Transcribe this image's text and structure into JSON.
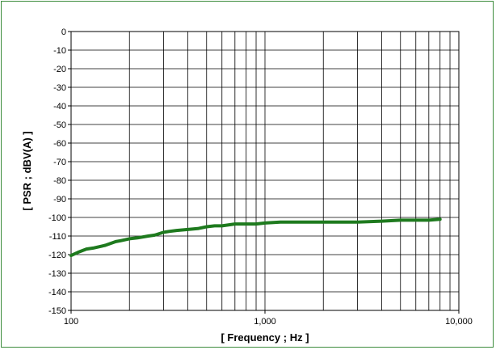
{
  "chart_data": {
    "type": "line",
    "title": "",
    "xlabel": "[ Frequency ; Hz ]",
    "ylabel": "[ PSR ; dBV(A) ]",
    "x_scale": "log",
    "xlim": [
      100,
      10000
    ],
    "ylim": [
      -150,
      0
    ],
    "x_ticks": [
      100,
      1000,
      10000
    ],
    "x_tick_labels": [
      "100",
      "1,000",
      "10,000"
    ],
    "y_ticks": [
      0,
      -10,
      -20,
      -30,
      -40,
      -50,
      -60,
      -70,
      -80,
      -90,
      -100,
      -110,
      -120,
      -130,
      -140,
      -150
    ],
    "y_tick_labels": [
      "0",
      "-10",
      "-20",
      "-30",
      "-40",
      "-50",
      "-60",
      "-70",
      "-80",
      "-90",
      "-100",
      "-110",
      "-120",
      "-130",
      "-140",
      "-150"
    ],
    "grid": true,
    "legend": "none",
    "series": [
      {
        "color": "#1e7a1e",
        "x": [
          100,
          110,
          120,
          130,
          150,
          170,
          180,
          200,
          220,
          250,
          270,
          300,
          320,
          350,
          400,
          450,
          500,
          550,
          600,
          700,
          800,
          900,
          1000,
          1200,
          1500,
          2000,
          2500,
          3000,
          4000,
          5000,
          6000,
          7000,
          8000
        ],
        "y": [
          -120.5,
          -118.5,
          -117,
          -116.5,
          -115,
          -113,
          -112.5,
          -111.5,
          -111,
          -110,
          -109.5,
          -108,
          -107.5,
          -107,
          -106.5,
          -106,
          -105,
          -104.5,
          -104.5,
          -103.5,
          -103.5,
          -103.5,
          -103,
          -102.5,
          -102.5,
          -102.5,
          -102.5,
          -102.5,
          -102,
          -101.5,
          -101.5,
          -101.5,
          -101
        ]
      }
    ]
  },
  "colors": {
    "frame_border": "#3c8c3c",
    "grid": "#000000",
    "line": "#1e7a1e"
  }
}
